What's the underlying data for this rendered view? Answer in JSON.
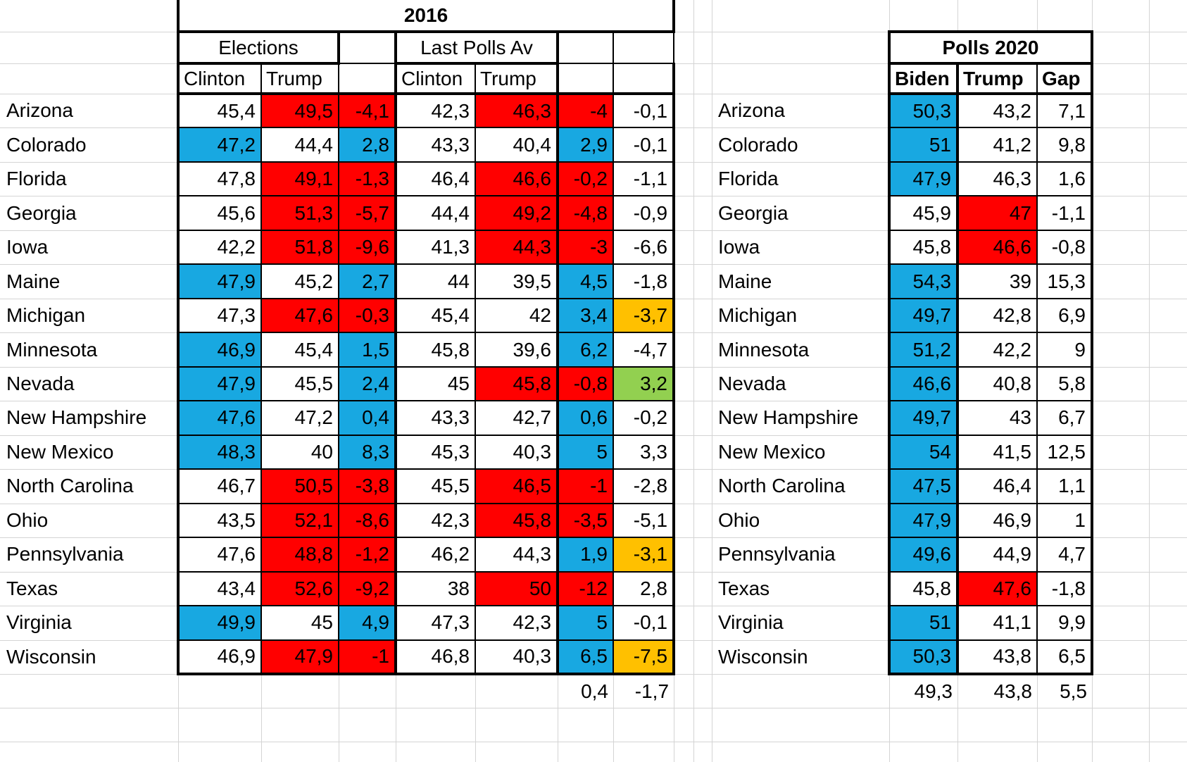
{
  "colors": {
    "win_blue": "#18A8E1",
    "win_red": "#FF0000",
    "warn_orange": "#FFC000",
    "good_green": "#92D050",
    "grid_gray": "#D4D4D4",
    "border_black": "#000000"
  },
  "left_table": {
    "title": "2016",
    "group_elections": "Elections",
    "group_last_polls": "Last Polls Av",
    "col_clinton1": "Clinton",
    "col_trump1": "Trump",
    "col_clinton2": "Clinton",
    "col_trump2": "Trump",
    "rows": [
      {
        "state": "Arizona",
        "cells": [
          {
            "v": "45,4",
            "c": "w"
          },
          {
            "v": "49,5",
            "c": "r"
          },
          {
            "v": "-4,1",
            "c": "r"
          },
          {
            "v": "42,3",
            "c": "w"
          },
          {
            "v": "46,3",
            "c": "r"
          },
          {
            "v": "-4",
            "c": "r"
          },
          {
            "v": "-0,1",
            "c": "w"
          }
        ]
      },
      {
        "state": "Colorado",
        "cells": [
          {
            "v": "47,2",
            "c": "b"
          },
          {
            "v": "44,4",
            "c": "w"
          },
          {
            "v": "2,8",
            "c": "b"
          },
          {
            "v": "43,3",
            "c": "w"
          },
          {
            "v": "40,4",
            "c": "w"
          },
          {
            "v": "2,9",
            "c": "b"
          },
          {
            "v": "-0,1",
            "c": "w"
          }
        ]
      },
      {
        "state": "Florida",
        "cells": [
          {
            "v": "47,8",
            "c": "w"
          },
          {
            "v": "49,1",
            "c": "r"
          },
          {
            "v": "-1,3",
            "c": "r"
          },
          {
            "v": "46,4",
            "c": "w"
          },
          {
            "v": "46,6",
            "c": "r"
          },
          {
            "v": "-0,2",
            "c": "r"
          },
          {
            "v": "-1,1",
            "c": "w"
          }
        ]
      },
      {
        "state": "Georgia",
        "cells": [
          {
            "v": "45,6",
            "c": "w"
          },
          {
            "v": "51,3",
            "c": "r"
          },
          {
            "v": "-5,7",
            "c": "r"
          },
          {
            "v": "44,4",
            "c": "w"
          },
          {
            "v": "49,2",
            "c": "r"
          },
          {
            "v": "-4,8",
            "c": "r"
          },
          {
            "v": "-0,9",
            "c": "w"
          }
        ]
      },
      {
        "state": "Iowa",
        "cells": [
          {
            "v": "42,2",
            "c": "w"
          },
          {
            "v": "51,8",
            "c": "r"
          },
          {
            "v": "-9,6",
            "c": "r"
          },
          {
            "v": "41,3",
            "c": "w"
          },
          {
            "v": "44,3",
            "c": "r"
          },
          {
            "v": "-3",
            "c": "r"
          },
          {
            "v": "-6,6",
            "c": "w"
          }
        ]
      },
      {
        "state": "Maine",
        "cells": [
          {
            "v": "47,9",
            "c": "b"
          },
          {
            "v": "45,2",
            "c": "w"
          },
          {
            "v": "2,7",
            "c": "b"
          },
          {
            "v": "44",
            "c": "w"
          },
          {
            "v": "39,5",
            "c": "w"
          },
          {
            "v": "4,5",
            "c": "b"
          },
          {
            "v": "-1,8",
            "c": "w"
          }
        ]
      },
      {
        "state": "Michigan",
        "cells": [
          {
            "v": "47,3",
            "c": "w"
          },
          {
            "v": "47,6",
            "c": "r"
          },
          {
            "v": "-0,3",
            "c": "r"
          },
          {
            "v": "45,4",
            "c": "w"
          },
          {
            "v": "42",
            "c": "w"
          },
          {
            "v": "3,4",
            "c": "b"
          },
          {
            "v": "-3,7",
            "c": "o"
          }
        ]
      },
      {
        "state": "Minnesota",
        "cells": [
          {
            "v": "46,9",
            "c": "b"
          },
          {
            "v": "45,4",
            "c": "w"
          },
          {
            "v": "1,5",
            "c": "b"
          },
          {
            "v": "45,8",
            "c": "w"
          },
          {
            "v": "39,6",
            "c": "w"
          },
          {
            "v": "6,2",
            "c": "b"
          },
          {
            "v": "-4,7",
            "c": "w"
          }
        ]
      },
      {
        "state": "Nevada",
        "cells": [
          {
            "v": "47,9",
            "c": "b"
          },
          {
            "v": "45,5",
            "c": "w"
          },
          {
            "v": "2,4",
            "c": "b"
          },
          {
            "v": "45",
            "c": "w"
          },
          {
            "v": "45,8",
            "c": "r"
          },
          {
            "v": "-0,8",
            "c": "r"
          },
          {
            "v": "3,2",
            "c": "g"
          }
        ]
      },
      {
        "state": "New Hampshire",
        "cells": [
          {
            "v": "47,6",
            "c": "b"
          },
          {
            "v": "47,2",
            "c": "w"
          },
          {
            "v": "0,4",
            "c": "b"
          },
          {
            "v": "43,3",
            "c": "w"
          },
          {
            "v": "42,7",
            "c": "w"
          },
          {
            "v": "0,6",
            "c": "b"
          },
          {
            "v": "-0,2",
            "c": "w"
          }
        ]
      },
      {
        "state": "New Mexico",
        "cells": [
          {
            "v": "48,3",
            "c": "b"
          },
          {
            "v": "40",
            "c": "w"
          },
          {
            "v": "8,3",
            "c": "b"
          },
          {
            "v": "45,3",
            "c": "w"
          },
          {
            "v": "40,3",
            "c": "w"
          },
          {
            "v": "5",
            "c": "b"
          },
          {
            "v": "3,3",
            "c": "w"
          }
        ]
      },
      {
        "state": "North Carolina",
        "cells": [
          {
            "v": "46,7",
            "c": "w"
          },
          {
            "v": "50,5",
            "c": "r"
          },
          {
            "v": "-3,8",
            "c": "r"
          },
          {
            "v": "45,5",
            "c": "w"
          },
          {
            "v": "46,5",
            "c": "r"
          },
          {
            "v": "-1",
            "c": "r"
          },
          {
            "v": "-2,8",
            "c": "w"
          }
        ]
      },
      {
        "state": "Ohio",
        "cells": [
          {
            "v": "43,5",
            "c": "w"
          },
          {
            "v": "52,1",
            "c": "r"
          },
          {
            "v": "-8,6",
            "c": "r"
          },
          {
            "v": "42,3",
            "c": "w"
          },
          {
            "v": "45,8",
            "c": "r"
          },
          {
            "v": "-3,5",
            "c": "r"
          },
          {
            "v": "-5,1",
            "c": "w"
          }
        ]
      },
      {
        "state": "Pennsylvania",
        "cells": [
          {
            "v": "47,6",
            "c": "w"
          },
          {
            "v": "48,8",
            "c": "r"
          },
          {
            "v": "-1,2",
            "c": "r"
          },
          {
            "v": "46,2",
            "c": "w"
          },
          {
            "v": "44,3",
            "c": "w"
          },
          {
            "v": "1,9",
            "c": "b"
          },
          {
            "v": "-3,1",
            "c": "o"
          }
        ]
      },
      {
        "state": "Texas",
        "cells": [
          {
            "v": "43,4",
            "c": "w"
          },
          {
            "v": "52,6",
            "c": "r"
          },
          {
            "v": "-9,2",
            "c": "r"
          },
          {
            "v": "38",
            "c": "w"
          },
          {
            "v": "50",
            "c": "r"
          },
          {
            "v": "-12",
            "c": "r"
          },
          {
            "v": "2,8",
            "c": "w"
          }
        ]
      },
      {
        "state": "Virginia",
        "cells": [
          {
            "v": "49,9",
            "c": "b"
          },
          {
            "v": "45",
            "c": "w"
          },
          {
            "v": "4,9",
            "c": "b"
          },
          {
            "v": "47,3",
            "c": "w"
          },
          {
            "v": "42,3",
            "c": "w"
          },
          {
            "v": "5",
            "c": "b"
          },
          {
            "v": "-0,1",
            "c": "w"
          }
        ]
      },
      {
        "state": "Wisconsin",
        "cells": [
          {
            "v": "46,9",
            "c": "w"
          },
          {
            "v": "47,9",
            "c": "r"
          },
          {
            "v": "-1",
            "c": "r"
          },
          {
            "v": "46,8",
            "c": "w"
          },
          {
            "v": "40,3",
            "c": "w"
          },
          {
            "v": "6,5",
            "c": "b"
          },
          {
            "v": "-7,5",
            "c": "o"
          }
        ]
      }
    ],
    "footer": {
      "polls_gap_avg": "0,4",
      "diff_avg": "-1,7"
    }
  },
  "right_table": {
    "title": "Polls 2020",
    "col_biden": "Biden",
    "col_trump": "Trump",
    "col_gap": "Gap",
    "rows": [
      {
        "state": "Arizona",
        "cells": [
          {
            "v": "50,3",
            "c": "b"
          },
          {
            "v": "43,2",
            "c": "w"
          },
          {
            "v": "7,1",
            "c": "w"
          }
        ]
      },
      {
        "state": "Colorado",
        "cells": [
          {
            "v": "51",
            "c": "b"
          },
          {
            "v": "41,2",
            "c": "w"
          },
          {
            "v": "9,8",
            "c": "w"
          }
        ]
      },
      {
        "state": "Florida",
        "cells": [
          {
            "v": "47,9",
            "c": "b"
          },
          {
            "v": "46,3",
            "c": "w"
          },
          {
            "v": "1,6",
            "c": "w"
          }
        ]
      },
      {
        "state": "Georgia",
        "cells": [
          {
            "v": "45,9",
            "c": "w"
          },
          {
            "v": "47",
            "c": "r"
          },
          {
            "v": "-1,1",
            "c": "w"
          }
        ]
      },
      {
        "state": "Iowa",
        "cells": [
          {
            "v": "45,8",
            "c": "w"
          },
          {
            "v": "46,6",
            "c": "r"
          },
          {
            "v": "-0,8",
            "c": "w"
          }
        ]
      },
      {
        "state": "Maine",
        "cells": [
          {
            "v": "54,3",
            "c": "b"
          },
          {
            "v": "39",
            "c": "w"
          },
          {
            "v": "15,3",
            "c": "w"
          }
        ]
      },
      {
        "state": "Michigan",
        "cells": [
          {
            "v": "49,7",
            "c": "b"
          },
          {
            "v": "42,8",
            "c": "w"
          },
          {
            "v": "6,9",
            "c": "w"
          }
        ]
      },
      {
        "state": "Minnesota",
        "cells": [
          {
            "v": "51,2",
            "c": "b"
          },
          {
            "v": "42,2",
            "c": "w"
          },
          {
            "v": "9",
            "c": "w"
          }
        ]
      },
      {
        "state": "Nevada",
        "cells": [
          {
            "v": "46,6",
            "c": "b"
          },
          {
            "v": "40,8",
            "c": "w"
          },
          {
            "v": "5,8",
            "c": "w"
          }
        ]
      },
      {
        "state": "New Hampshire",
        "cells": [
          {
            "v": "49,7",
            "c": "b"
          },
          {
            "v": "43",
            "c": "w"
          },
          {
            "v": "6,7",
            "c": "w"
          }
        ]
      },
      {
        "state": "New Mexico",
        "cells": [
          {
            "v": "54",
            "c": "b"
          },
          {
            "v": "41,5",
            "c": "w"
          },
          {
            "v": "12,5",
            "c": "w"
          }
        ]
      },
      {
        "state": "North Carolina",
        "cells": [
          {
            "v": "47,5",
            "c": "b"
          },
          {
            "v": "46,4",
            "c": "w"
          },
          {
            "v": "1,1",
            "c": "w"
          }
        ]
      },
      {
        "state": "Ohio",
        "cells": [
          {
            "v": "47,9",
            "c": "b"
          },
          {
            "v": "46,9",
            "c": "w"
          },
          {
            "v": "1",
            "c": "w"
          }
        ]
      },
      {
        "state": "Pennsylvania",
        "cells": [
          {
            "v": "49,6",
            "c": "b"
          },
          {
            "v": "44,9",
            "c": "w"
          },
          {
            "v": "4,7",
            "c": "w"
          }
        ]
      },
      {
        "state": "Texas",
        "cells": [
          {
            "v": "45,8",
            "c": "w"
          },
          {
            "v": "47,6",
            "c": "r"
          },
          {
            "v": "-1,8",
            "c": "w"
          }
        ]
      },
      {
        "state": "Virginia",
        "cells": [
          {
            "v": "51",
            "c": "b"
          },
          {
            "v": "41,1",
            "c": "w"
          },
          {
            "v": "9,9",
            "c": "w"
          }
        ]
      },
      {
        "state": "Wisconsin",
        "cells": [
          {
            "v": "50,3",
            "c": "b"
          },
          {
            "v": "43,8",
            "c": "w"
          },
          {
            "v": "6,5",
            "c": "w"
          }
        ]
      }
    ],
    "footer": {
      "biden_avg": "49,3",
      "trump_avg": "43,8",
      "gap_avg": "5,5"
    }
  }
}
